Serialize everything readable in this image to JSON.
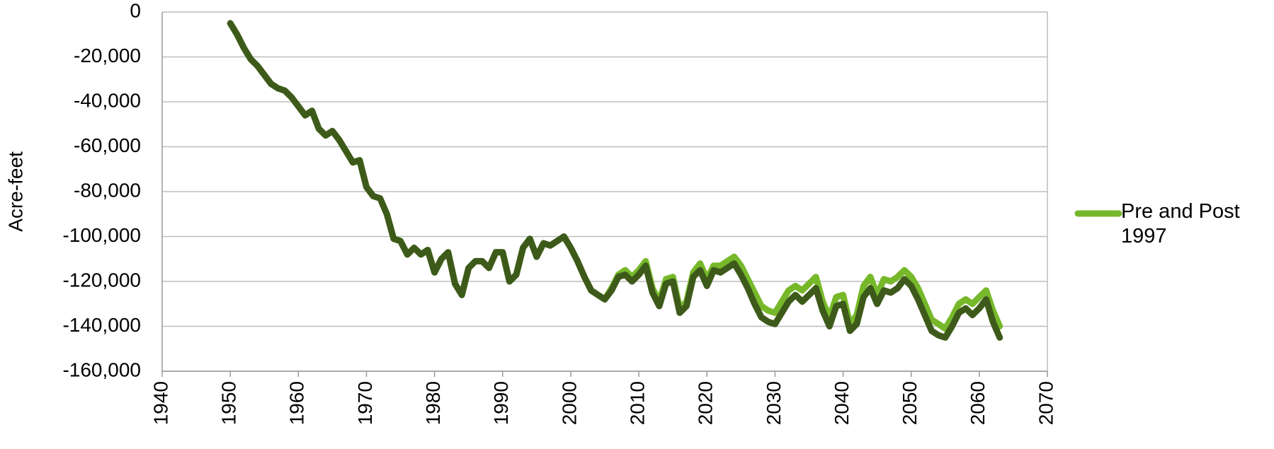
{
  "chart_data": {
    "type": "line",
    "y_label": "Acre-feet",
    "x": [
      1950,
      1951,
      1952,
      1953,
      1954,
      1955,
      1956,
      1957,
      1958,
      1959,
      1960,
      1961,
      1962,
      1963,
      1964,
      1965,
      1966,
      1967,
      1968,
      1969,
      1970,
      1971,
      1972,
      1973,
      1974,
      1975,
      1976,
      1977,
      1978,
      1979,
      1980,
      1981,
      1982,
      1983,
      1984,
      1985,
      1986,
      1987,
      1988,
      1989,
      1990,
      1991,
      1992,
      1993,
      1994,
      1995,
      1996,
      1997,
      1998,
      1999,
      2000,
      2001,
      2002,
      2003,
      2004,
      2005,
      2006,
      2007,
      2008,
      2009,
      2010,
      2011,
      2012,
      2013,
      2014,
      2015,
      2016,
      2017,
      2018,
      2019,
      2020,
      2021,
      2022,
      2023,
      2024,
      2025,
      2026,
      2027,
      2028,
      2029,
      2030,
      2031,
      2032,
      2033,
      2034,
      2035,
      2036,
      2037,
      2038,
      2039,
      2040,
      2041,
      2042,
      2043,
      2044,
      2045,
      2046,
      2047,
      2048,
      2049,
      2050,
      2051,
      2052,
      2053,
      2054,
      2055,
      2056,
      2057,
      2058,
      2059,
      2060,
      2061,
      2062,
      2063
    ],
    "series": [
      {
        "name": "Pre and Post 1997",
        "color": "#76b82a",
        "values": [
          -5000,
          -10000,
          -16000,
          -21000,
          -24000,
          -28000,
          -32000,
          -34000,
          -35000,
          -38000,
          -42000,
          -46000,
          -44000,
          -52000,
          -55000,
          -53000,
          -57000,
          -62000,
          -67000,
          -66000,
          -78000,
          -82000,
          -83000,
          -90000,
          -101000,
          -102000,
          -108000,
          -105000,
          -108000,
          -106000,
          -116000,
          -110000,
          -107000,
          -121000,
          -126000,
          -114000,
          -111000,
          -111000,
          -114000,
          -107000,
          -107000,
          -120000,
          -117000,
          -105000,
          -101000,
          -109000,
          -103000,
          -104000,
          -102000,
          -100000,
          -105000,
          -111000,
          -118000,
          -124000,
          -126000,
          -128000,
          -123000,
          -117000,
          -115000,
          -118000,
          -115000,
          -111000,
          -123000,
          -129000,
          -119000,
          -118000,
          -132000,
          -129000,
          -116000,
          -112000,
          -119000,
          -113000,
          -113000,
          -111000,
          -109000,
          -113000,
          -119000,
          -125000,
          -131000,
          -133000,
          -134000,
          -129000,
          -124000,
          -122000,
          -124000,
          -121000,
          -118000,
          -129000,
          -136000,
          -127000,
          -126000,
          -139000,
          -135000,
          -122000,
          -118000,
          -126000,
          -119000,
          -120000,
          -118000,
          -115000,
          -118000,
          -123000,
          -130000,
          -137000,
          -139000,
          -141000,
          -136000,
          -130000,
          -128000,
          -130000,
          -127000,
          -124000,
          -133000,
          -140000
        ]
      },
      {
        "color": "#3d5a1a",
        "values": [
          -5000,
          -10000,
          -16000,
          -21000,
          -24000,
          -28000,
          -32000,
          -34000,
          -35000,
          -38000,
          -42000,
          -46000,
          -44000,
          -52000,
          -55000,
          -53000,
          -57000,
          -62000,
          -67000,
          -66000,
          -78000,
          -82000,
          -83000,
          -90000,
          -101000,
          -102000,
          -108000,
          -105000,
          -108000,
          -106000,
          -116000,
          -110000,
          -107000,
          -121000,
          -126000,
          -114000,
          -111000,
          -111000,
          -114000,
          -107000,
          -107000,
          -120000,
          -117000,
          -105000,
          -101000,
          -109000,
          -103000,
          -104000,
          -102000,
          -100000,
          -105000,
          -111000,
          -118000,
          -124000,
          -126000,
          -128000,
          -124000,
          -118000,
          -117000,
          -120000,
          -117000,
          -113000,
          -125000,
          -131000,
          -121000,
          -120000,
          -134000,
          -131000,
          -118000,
          -115000,
          -122000,
          -115000,
          -116000,
          -114000,
          -112000,
          -117000,
          -123000,
          -130000,
          -136000,
          -138000,
          -139000,
          -134000,
          -129000,
          -126000,
          -129000,
          -126000,
          -123000,
          -133000,
          -140000,
          -131000,
          -130000,
          -142000,
          -139000,
          -127000,
          -123000,
          -130000,
          -124000,
          -125000,
          -123000,
          -119000,
          -122000,
          -128000,
          -135000,
          -142000,
          -144000,
          -145000,
          -140000,
          -134000,
          -132000,
          -135000,
          -132000,
          -128000,
          -138000,
          -145000
        ]
      }
    ],
    "xlim": [
      1940,
      2070
    ],
    "xticks": [
      1940,
      1950,
      1960,
      1970,
      1980,
      1990,
      2000,
      2010,
      2020,
      2030,
      2040,
      2050,
      2060,
      2070
    ],
    "ylim": [
      -160000,
      0
    ],
    "yticks": [
      {
        "value": -160000,
        "label": "-160,000"
      },
      {
        "value": -140000,
        "label": "-140,000"
      },
      {
        "value": -120000,
        "label": "-120,000"
      },
      {
        "value": -100000,
        "label": "-100,000"
      },
      {
        "value": -80000,
        "label": "-80,000"
      },
      {
        "value": -60000,
        "label": "-60,000"
      },
      {
        "value": -40000,
        "label": "-40,000"
      },
      {
        "value": -20000,
        "label": "-20,000"
      },
      0
    ],
    "grid": true,
    "legend": "right"
  }
}
